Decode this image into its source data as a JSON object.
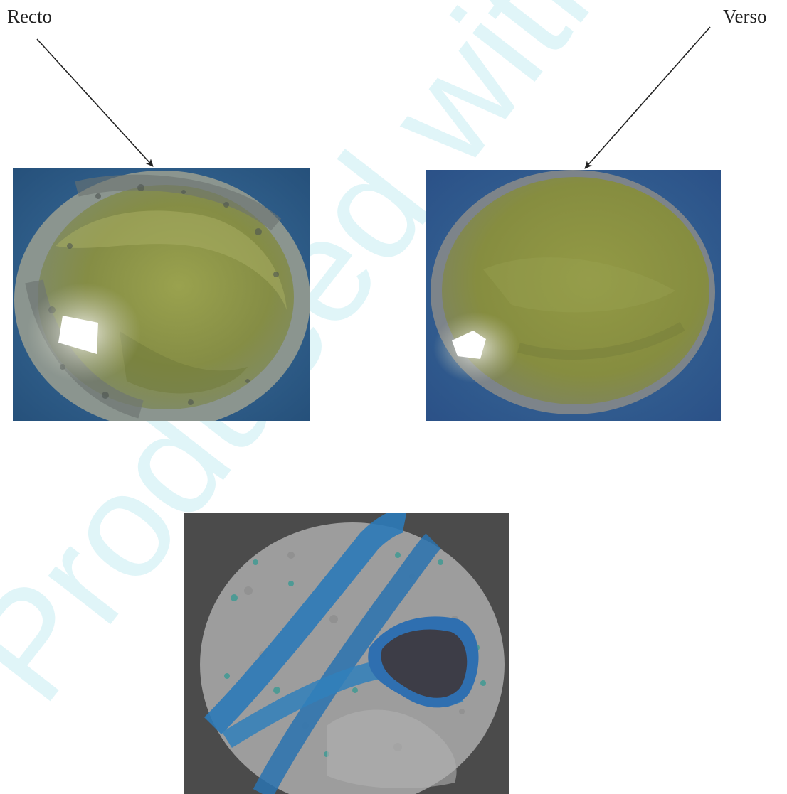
{
  "labels": {
    "recto": "Recto",
    "verso": "Verso"
  },
  "watermark": {
    "text": "Produced with ScanTo PDF",
    "color": "#cdeef3"
  },
  "colors": {
    "background_blue": "#2a5f8a",
    "disc_olive": "#8a9142",
    "disc_gray": "#8e9796",
    "scan_gray": "#9c9c9c",
    "scan_dark": "#4a4a4a",
    "stain_blue": "#2b78b6"
  }
}
